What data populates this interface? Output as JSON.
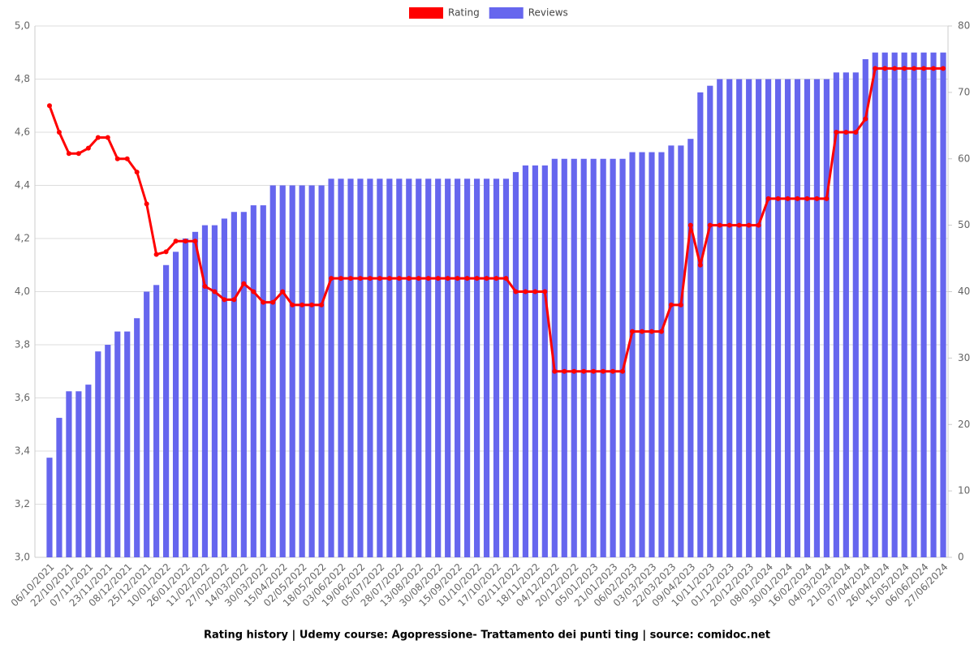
{
  "chart_data": {
    "type": "combo",
    "title": "Rating history | Udemy course: Agopressione- Trattamento dei punti ting | source: comidoc.net",
    "categories": [
      "06/10/2021",
      null,
      "22/10/2021",
      null,
      "07/11/2021",
      null,
      "23/11/2021",
      null,
      "08/12/2021",
      null,
      "25/12/2021",
      null,
      "10/01/2022",
      null,
      "26/01/2022",
      null,
      "11/02/2022",
      null,
      "27/02/2022",
      null,
      "14/03/2022",
      null,
      "30/03/2022",
      null,
      "15/04/2022",
      null,
      "02/05/2022",
      null,
      "18/05/2022",
      null,
      "03/06/2022",
      null,
      "19/06/2022",
      null,
      "05/07/2022",
      null,
      "28/07/2022",
      null,
      "13/08/2022",
      null,
      "30/08/2022",
      null,
      "15/09/2022",
      null,
      "01/10/2022",
      null,
      "17/10/2022",
      null,
      "02/11/2022",
      null,
      "18/11/2022",
      null,
      "04/12/2022",
      null,
      "20/12/2022",
      null,
      "05/01/2023",
      null,
      "21/01/2023",
      null,
      "06/02/2023",
      null,
      "03/03/2023",
      null,
      "22/03/2023",
      null,
      "09/04/2023",
      null,
      "10/11/2023",
      null,
      "01/12/2023",
      null,
      "20/12/2023",
      null,
      "08/01/2024",
      null,
      "30/01/2024",
      null,
      "16/02/2024",
      null,
      "04/03/2024",
      null,
      "21/03/2024",
      null,
      "07/04/2024",
      null,
      "26/04/2024",
      null,
      "15/05/2024",
      null,
      "06/06/2024",
      null,
      "27/06/2024"
    ],
    "series": [
      {
        "name": "Rating",
        "type": "line",
        "color": "#ff0000",
        "values": [
          4.7,
          4.6,
          4.52,
          4.52,
          4.54,
          4.58,
          4.58,
          4.5,
          4.5,
          4.45,
          4.33,
          4.14,
          4.15,
          4.19,
          4.19,
          4.19,
          4.02,
          4.0,
          3.97,
          3.97,
          4.03,
          4.0,
          3.96,
          3.96,
          4.0,
          3.95,
          3.95,
          3.95,
          3.95,
          4.05,
          4.05,
          4.05,
          4.05,
          4.05,
          4.05,
          4.05,
          4.05,
          4.05,
          4.05,
          4.05,
          4.05,
          4.05,
          4.05,
          4.05,
          4.05,
          4.05,
          4.05,
          4.05,
          4.0,
          4.0,
          4.0,
          4.0,
          3.7,
          3.7,
          3.7,
          3.7,
          3.7,
          3.7,
          3.7,
          3.7,
          3.85,
          3.85,
          3.85,
          3.85,
          3.95,
          3.95,
          4.25,
          4.1,
          4.25,
          4.25,
          4.25,
          4.25,
          4.25,
          4.25,
          4.35,
          4.35,
          4.35,
          4.35,
          4.35,
          4.35,
          4.35,
          4.6,
          4.6,
          4.6,
          4.65,
          4.84,
          4.84,
          4.84,
          4.84,
          4.84,
          4.84,
          4.84,
          4.84
        ]
      },
      {
        "name": "Reviews",
        "type": "bar",
        "axis": "y2",
        "color": "#6666ee",
        "values": [
          15,
          21,
          25,
          25,
          26,
          31,
          32,
          34,
          34,
          36,
          40,
          41,
          44,
          46,
          48,
          49,
          50,
          50,
          51,
          52,
          52,
          53,
          53,
          56,
          56,
          56,
          56,
          56,
          56,
          57,
          57,
          57,
          57,
          57,
          57,
          57,
          57,
          57,
          57,
          57,
          57,
          57,
          57,
          57,
          57,
          57,
          57,
          57,
          58,
          59,
          59,
          59,
          60,
          60,
          60,
          60,
          60,
          60,
          60,
          60,
          61,
          61,
          61,
          61,
          62,
          62,
          63,
          70,
          71,
          72,
          72,
          72,
          72,
          72,
          72,
          72,
          72,
          72,
          72,
          72,
          72,
          73,
          73,
          73,
          75,
          76,
          76,
          76,
          76,
          76,
          76,
          76,
          76
        ]
      }
    ],
    "ylim": [
      3,
      5
    ],
    "yticks": [
      {
        "value": 3,
        "label": "3,0"
      },
      {
        "value": 3.2,
        "label": "3,2"
      },
      {
        "value": 3.4,
        "label": "3,4"
      },
      {
        "value": 3.6,
        "label": "3,6"
      },
      {
        "value": 3.8,
        "label": "3,8"
      },
      {
        "value": 4,
        "label": "4,0"
      },
      {
        "value": 4.2,
        "label": "4,2"
      },
      {
        "value": 4.4,
        "label": "4,4"
      },
      {
        "value": 4.6,
        "label": "4,6"
      },
      {
        "value": 4.8,
        "label": "4,8"
      },
      {
        "value": 5,
        "label": "5,0"
      }
    ],
    "y2lim": [
      0,
      80
    ],
    "y2ticks": [
      0,
      10,
      20,
      30,
      40,
      50,
      60,
      70,
      80
    ],
    "grid": true,
    "legend": "top"
  }
}
